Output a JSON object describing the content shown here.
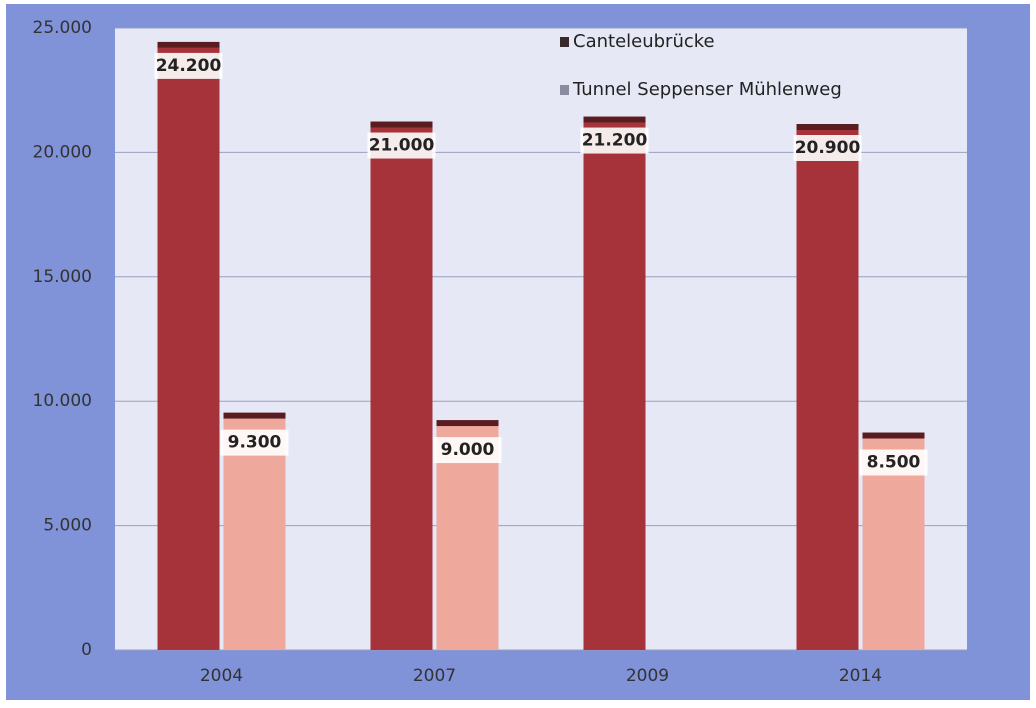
{
  "chart_data": {
    "type": "bar",
    "categories": [
      "2004",
      "2007",
      "2009",
      "2014"
    ],
    "series": [
      {
        "name": "Canteleubrücke",
        "color": "#a6333a",
        "values": [
          24200,
          21000,
          21200,
          20900
        ],
        "value_labels": [
          "24.200",
          "21.000",
          "21.200",
          "20.900"
        ]
      },
      {
        "name": "Tunnel Seppenser Mühlenweg",
        "color": "#efa89c",
        "values": [
          9300,
          9000,
          null,
          8500
        ],
        "value_labels": [
          "9.300",
          "9.000",
          null,
          "8.500"
        ]
      }
    ],
    "ylim": [
      0,
      25000
    ],
    "yticks": [
      0,
      {
        "value": 5000,
        "label": "5.000"
      },
      {
        "value": 10000,
        "label": "10.000"
      },
      {
        "value": 15000,
        "label": "15.000"
      },
      {
        "value": 20000,
        "label": "20.000"
      },
      {
        "value": 25000,
        "label": "25.000"
      }
    ],
    "grid": true
  }
}
